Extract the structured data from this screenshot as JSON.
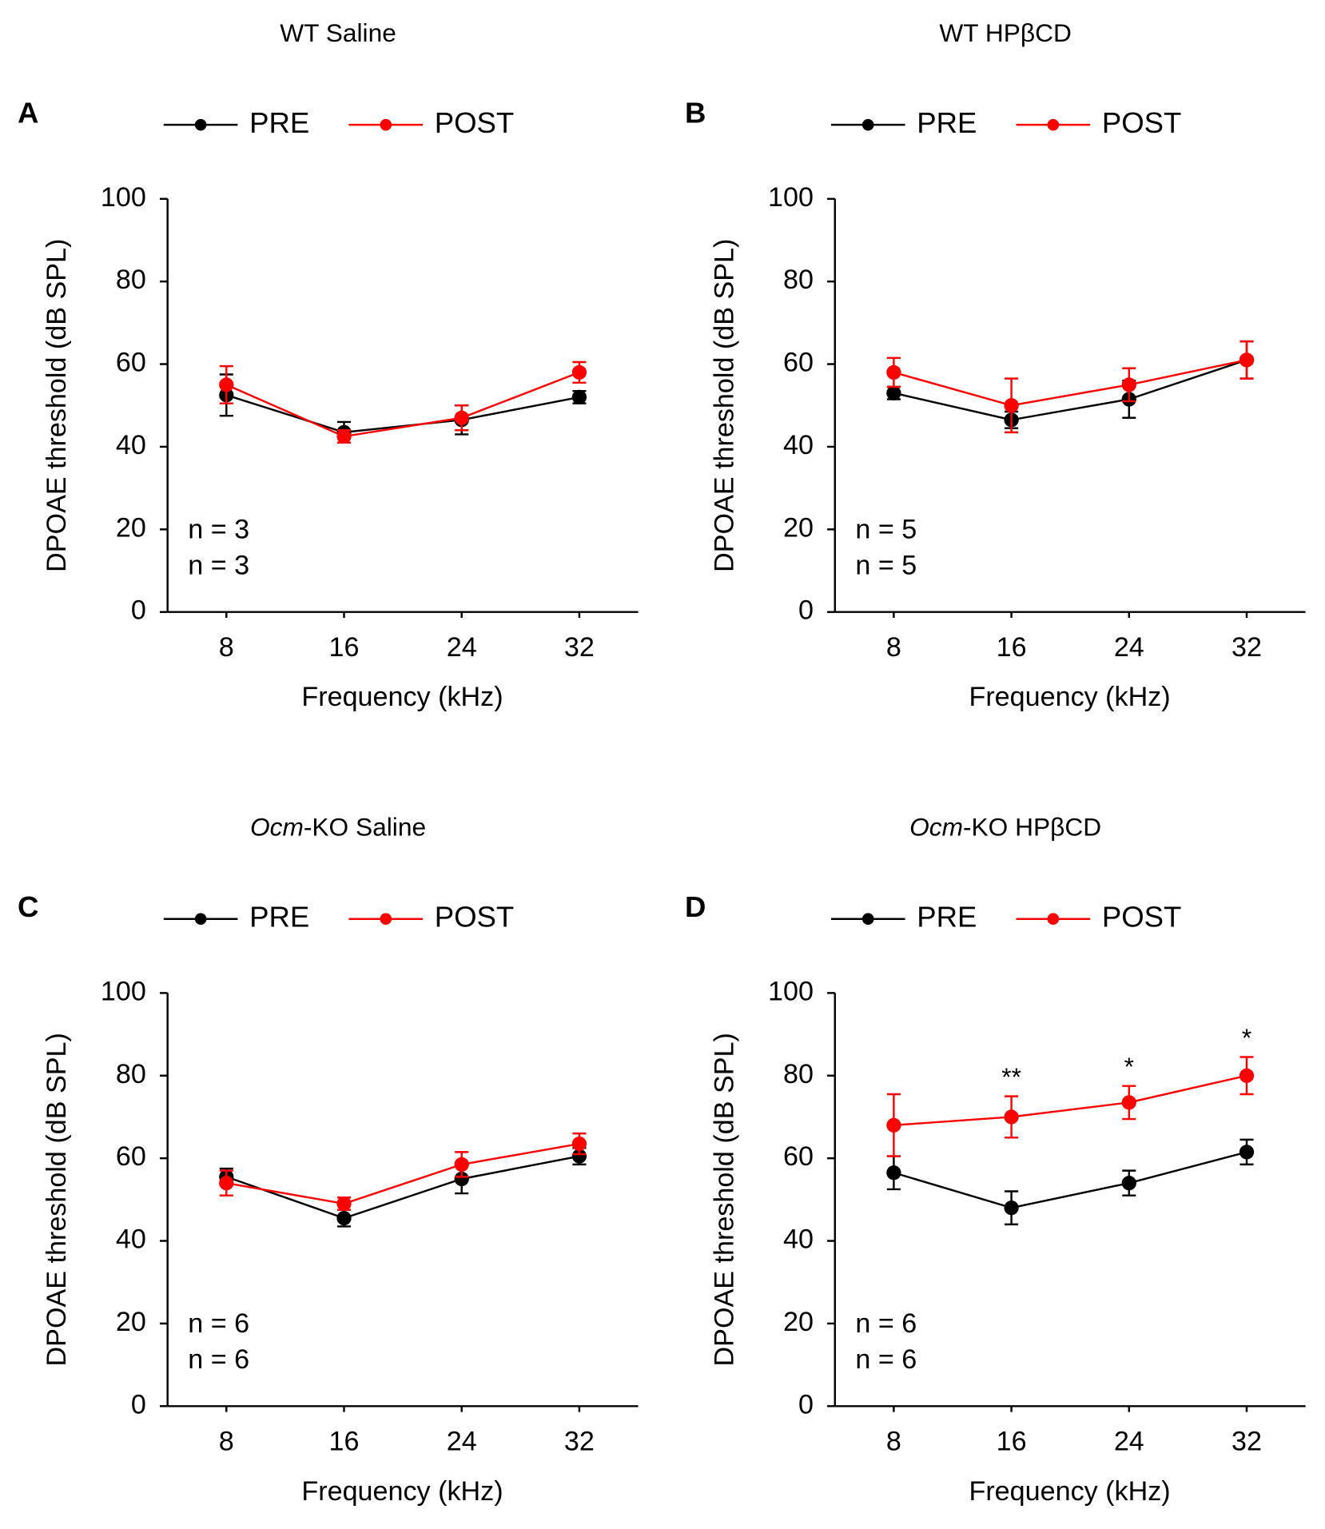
{
  "chart_data": [
    {
      "type": "line",
      "panel": "A",
      "title": "WT Saline",
      "x": [
        8,
        16,
        24,
        32
      ],
      "xlim": [
        4,
        36
      ],
      "xticks": [
        8,
        16,
        24,
        32
      ],
      "ylim": [
        0,
        100
      ],
      "yticks": [
        0,
        20,
        40,
        60,
        80,
        100
      ],
      "xlabel": "Frequency (kHz)",
      "ylabel": "DPOAE threshold (dB SPL)",
      "series": [
        {
          "name": "PRE",
          "color": "#000000",
          "values": [
            52.5,
            43.5,
            46.5,
            52
          ],
          "errors": [
            5,
            2.5,
            3.5,
            1.5
          ]
        },
        {
          "name": "POST",
          "color": "#ff0000",
          "values": [
            55,
            42.5,
            47,
            58
          ],
          "errors": [
            4.5,
            1.5,
            3,
            2.5
          ]
        }
      ],
      "n_labels": [
        "n = 3",
        "n = 3"
      ]
    },
    {
      "type": "line",
      "panel": "B",
      "title": "WT HPβCD",
      "x": [
        8,
        16,
        24,
        32
      ],
      "xlim": [
        4,
        36
      ],
      "xticks": [
        8,
        16,
        24,
        32
      ],
      "ylim": [
        0,
        100
      ],
      "yticks": [
        0,
        20,
        40,
        60,
        80,
        100
      ],
      "xlabel": "Frequency (kHz)",
      "ylabel": "DPOAE threshold (dB SPL)",
      "series": [
        {
          "name": "PRE",
          "color": "#000000",
          "values": [
            53,
            46.5,
            51.5,
            61
          ],
          "errors": [
            1.5,
            2,
            4.5,
            4.5
          ]
        },
        {
          "name": "POST",
          "color": "#ff0000",
          "values": [
            58,
            50,
            55,
            61
          ],
          "errors": [
            3.5,
            6.5,
            4,
            4.5
          ]
        }
      ],
      "n_labels": [
        "n = 5",
        "n = 5"
      ]
    },
    {
      "type": "line",
      "panel": "C",
      "title_italic": "Ocm",
      "title": "-KO Saline",
      "x": [
        8,
        16,
        24,
        32
      ],
      "xlim": [
        4,
        36
      ],
      "xticks": [
        8,
        16,
        24,
        32
      ],
      "ylim": [
        0,
        100
      ],
      "yticks": [
        0,
        20,
        40,
        60,
        80,
        100
      ],
      "xlabel": "Frequency (kHz)",
      "ylabel": "DPOAE threshold (dB SPL)",
      "series": [
        {
          "name": "PRE",
          "color": "#000000",
          "values": [
            55.5,
            45.5,
            55,
            60.5
          ],
          "errors": [
            2,
            2,
            3.5,
            2
          ]
        },
        {
          "name": "POST",
          "color": "#ff0000",
          "values": [
            54,
            49,
            58.5,
            63.5
          ],
          "errors": [
            3,
            1.5,
            3,
            2.5
          ]
        }
      ],
      "n_labels": [
        "n = 6",
        "n = 6"
      ]
    },
    {
      "type": "line",
      "panel": "D",
      "title_italic": "Ocm",
      "title": "-KO HPβCD",
      "x": [
        8,
        16,
        24,
        32
      ],
      "xlim": [
        4,
        36
      ],
      "xticks": [
        8,
        16,
        24,
        32
      ],
      "ylim": [
        0,
        100
      ],
      "yticks": [
        0,
        20,
        40,
        60,
        80,
        100
      ],
      "xlabel": "Frequency (kHz)",
      "ylabel": "DPOAE threshold (dB SPL)",
      "series": [
        {
          "name": "PRE",
          "color": "#000000",
          "values": [
            56.5,
            48,
            54,
            61.5
          ],
          "errors": [
            4,
            4,
            3,
            3
          ]
        },
        {
          "name": "POST",
          "color": "#ff0000",
          "values": [
            68,
            70,
            73.5,
            80
          ],
          "errors": [
            7.5,
            5,
            4,
            4.5
          ]
        }
      ],
      "n_labels": [
        "n = 6",
        "n = 6"
      ],
      "annotations": [
        {
          "text": "**",
          "x": 16
        },
        {
          "text": "*",
          "x": 24
        },
        {
          "text": "*",
          "x": 32
        }
      ]
    }
  ]
}
